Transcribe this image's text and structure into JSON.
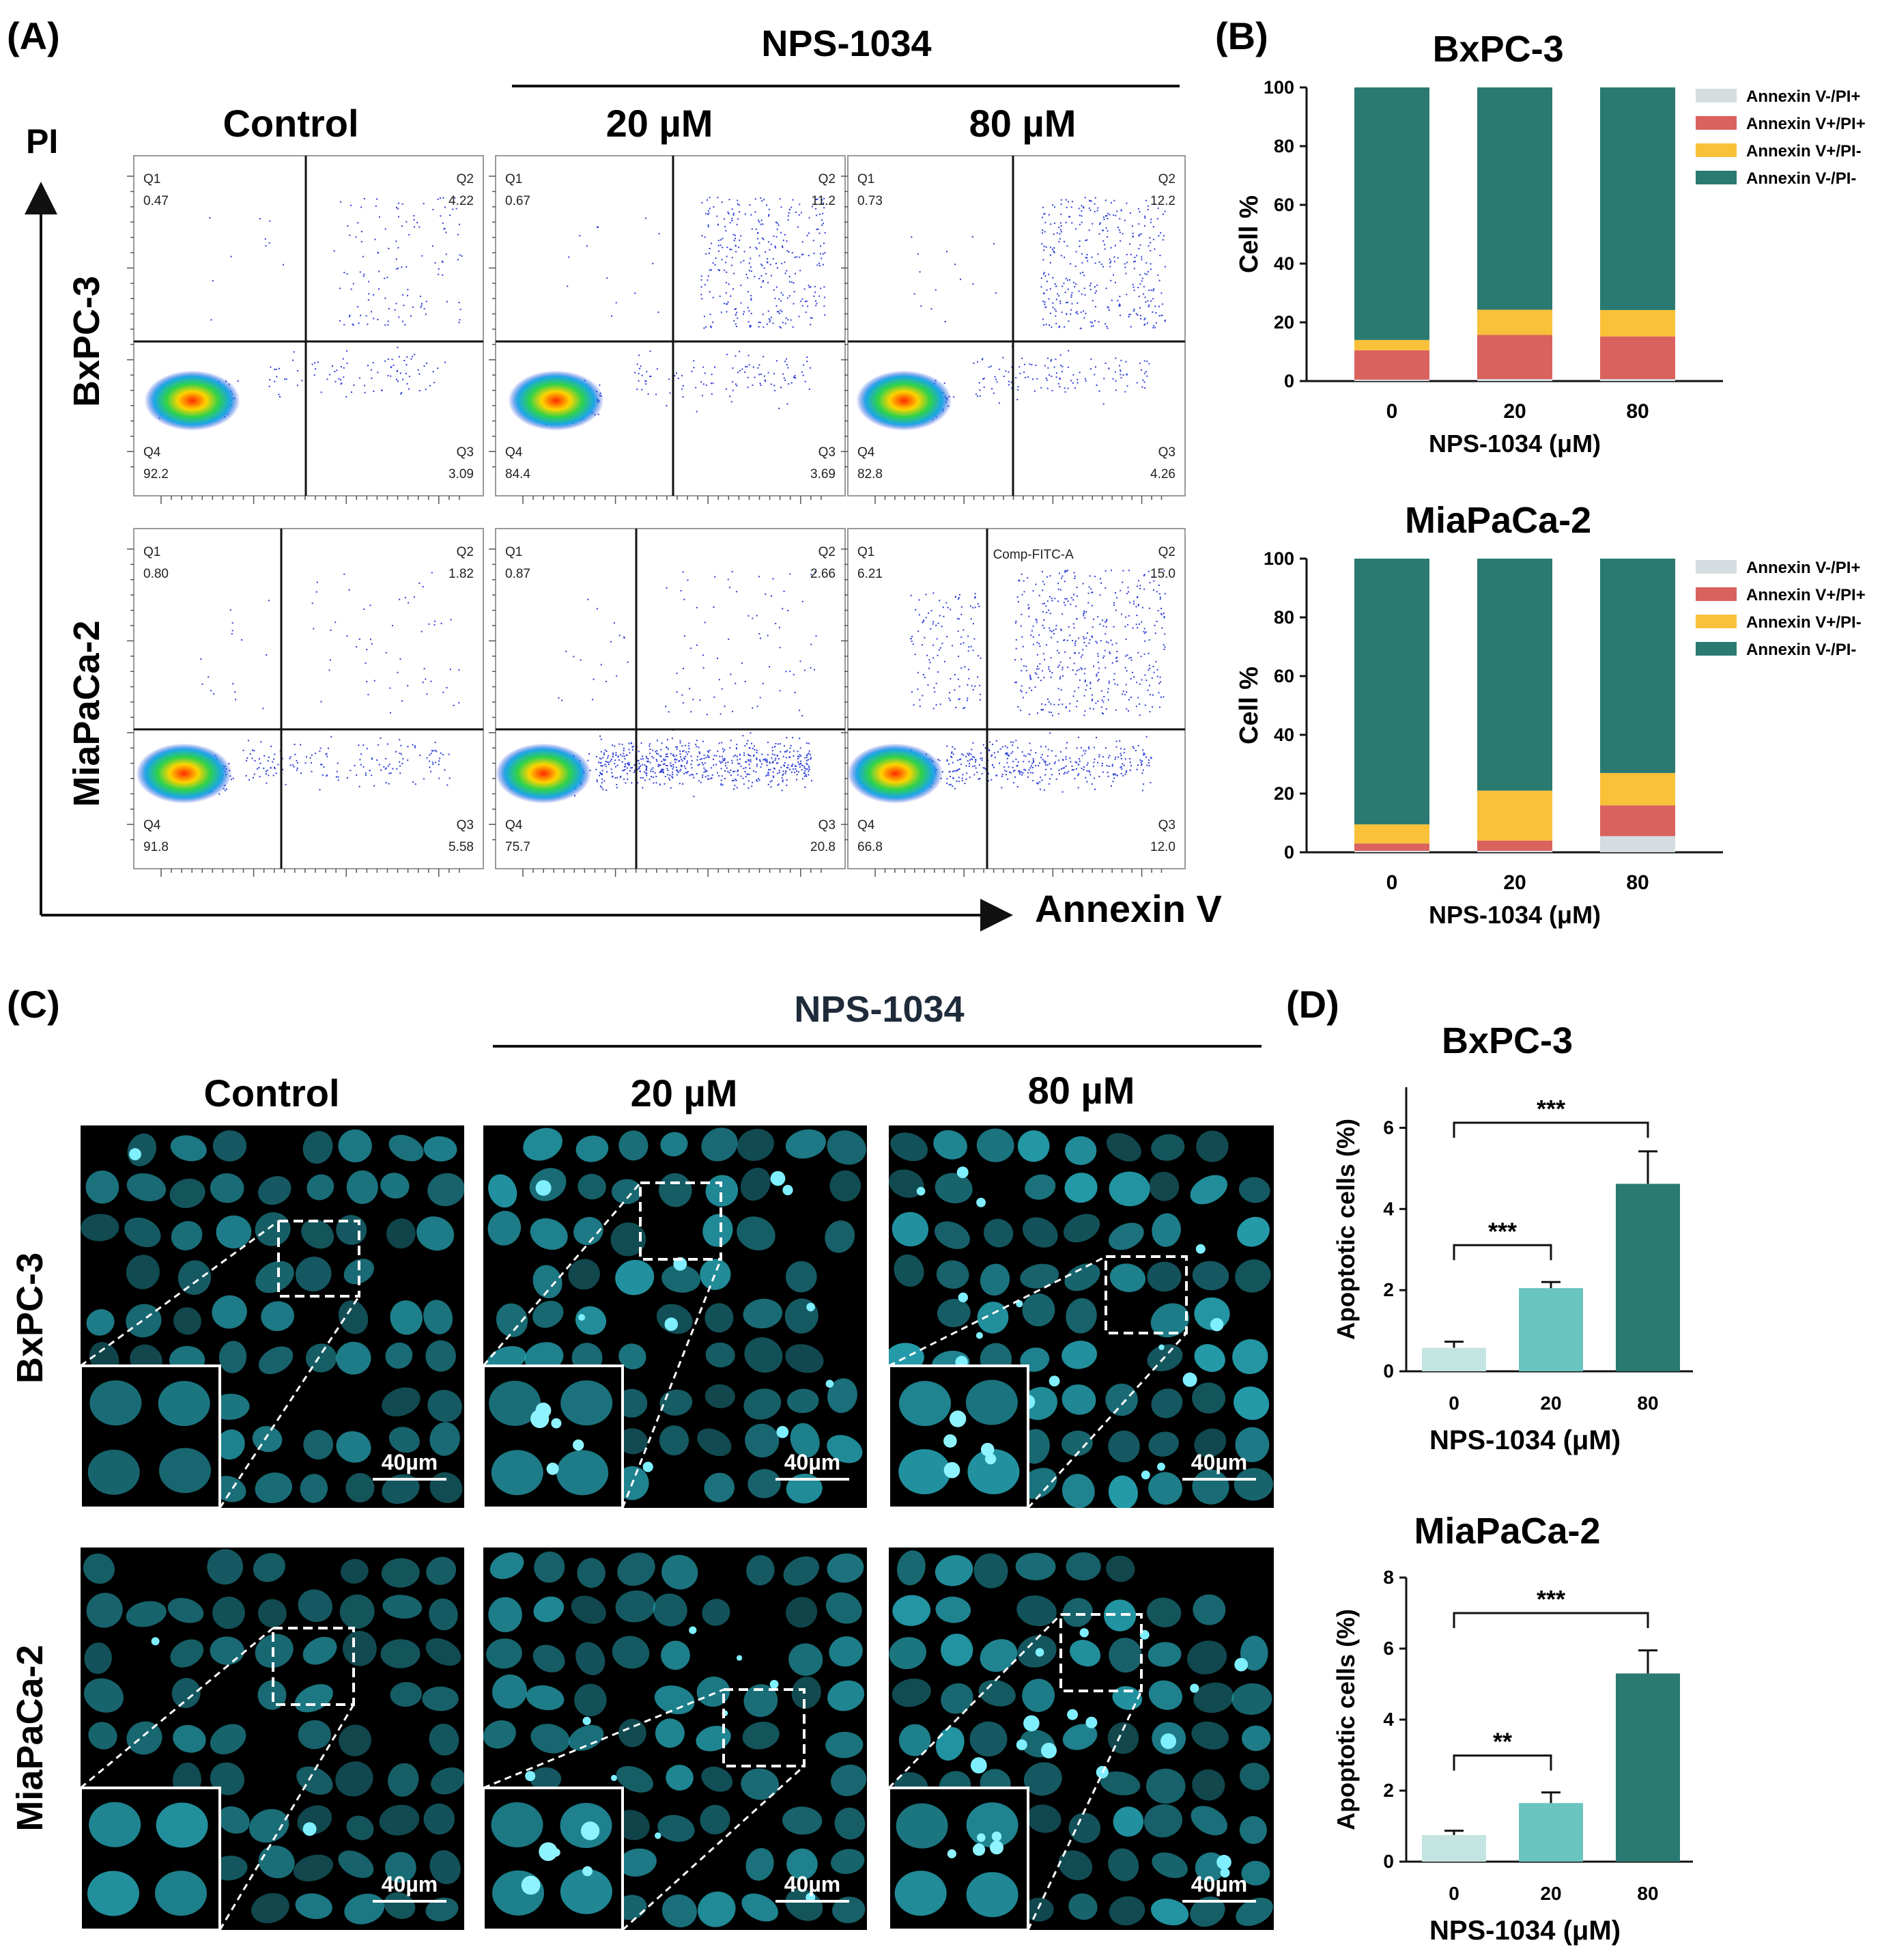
{
  "panelA": {
    "label": "(A)",
    "treatment_title": "NPS-1034",
    "columns": [
      "Control",
      "20 µM",
      "80 µM"
    ],
    "rows": [
      "BxPC-3",
      "MiaPaCa-2"
    ],
    "y_axis_label": "PI",
    "x_axis_label": "Annexin V",
    "quadrants": [
      [
        {
          "Q1": "0.47",
          "Q2": "4.22",
          "Q3": "3.09",
          "Q4": "92.2"
        },
        {
          "Q1": "0.67",
          "Q2": "11.2",
          "Q3": "3.69",
          "Q4": "84.4"
        },
        {
          "Q1": "0.73",
          "Q2": "12.2",
          "Q3": "4.26",
          "Q4": "82.8"
        }
      ],
      [
        {
          "Q1": "0.80",
          "Q2": "1.82",
          "Q3": "5.58",
          "Q4": "91.8"
        },
        {
          "Q1": "0.87",
          "Q2": "2.66",
          "Q3": "20.8",
          "Q4": "75.7"
        },
        {
          "Q1": "6.21",
          "Q2": "15.0",
          "Q3": "12.0",
          "Q4": "66.8",
          "extra": "Comp-FITC-A"
        }
      ]
    ]
  },
  "panelC": {
    "label": "(C)",
    "treatment_title": "NPS-1034",
    "columns": [
      "Control",
      "20 µM",
      "80 µM"
    ],
    "rows": [
      "BxPC-3",
      "MiaPaCa-2"
    ],
    "scale_bar": "40µm"
  },
  "panelB_label": "(B)",
  "panelD_label": "(D)",
  "colors": {
    "teal": "#2a7a72",
    "red": "#d9625e",
    "yellow": "#f9c139",
    "light_gray": "#d5dde0",
    "bar_light": "#c4e4e2",
    "bar_mid": "#6ac4c0",
    "bar_dark": "#2a7a72",
    "fluor": "#2ec4d6"
  },
  "chart_data": [
    {
      "type": "bar",
      "stacked": true,
      "title": "BxPC-3",
      "categories": [
        "0",
        "20",
        "80"
      ],
      "xlabel": "NPS-1034  (μM)",
      "ylabel": "Cell %",
      "ylim": [
        0,
        100
      ],
      "yticks": [
        "0",
        "20",
        "40",
        "60",
        "80",
        "100"
      ],
      "legend_position": "top-right",
      "series": [
        {
          "name": "Annexin V-/PI+",
          "values": [
            0.5,
            0.7,
            0.7
          ]
        },
        {
          "name": "Annexin V+/PI+",
          "values": [
            10,
            15,
            14.5
          ]
        },
        {
          "name": "Annexin V+/PI-",
          "values": [
            3.5,
            8.6,
            9
          ]
        },
        {
          "name": "Annexin V-/PI-",
          "values": [
            86,
            75.7,
            75.8
          ]
        }
      ]
    },
    {
      "type": "bar",
      "stacked": true,
      "title": "MiaPaCa-2",
      "categories": [
        "0",
        "20",
        "80"
      ],
      "xlabel": "NPS-1034  (μM)",
      "ylabel": "Cell %",
      "ylim": [
        0,
        100
      ],
      "yticks": [
        "0",
        "20",
        "40",
        "60",
        "80",
        "100"
      ],
      "legend_position": "top-right",
      "series": [
        {
          "name": "Annexin V-/PI+",
          "values": [
            0.5,
            0.5,
            5.5
          ]
        },
        {
          "name": "Annexin V+/PI+",
          "values": [
            2.5,
            3.5,
            10.5
          ]
        },
        {
          "name": "Annexin V+/PI-",
          "values": [
            6.5,
            17,
            11
          ]
        },
        {
          "name": "Annexin V-/PI-",
          "values": [
            90.5,
            79,
            73
          ]
        }
      ]
    },
    {
      "type": "bar",
      "title": "BxPC-3",
      "categories": [
        "0",
        "20",
        "80"
      ],
      "xlabel": "NPS-1034  (μM)",
      "ylabel": "Apoptotic cells (%)",
      "ylim": [
        0,
        7
      ],
      "yticks": [
        "0",
        "2",
        "4",
        "6"
      ],
      "values": [
        0.58,
        2.05,
        4.62
      ],
      "errors": [
        0.15,
        0.15,
        0.8
      ],
      "significance": [
        {
          "from": "0",
          "to": "20",
          "label": "***"
        },
        {
          "from": "0",
          "to": "80",
          "label": "***"
        }
      ]
    },
    {
      "type": "bar",
      "title": "MiaPaCa-2",
      "categories": [
        "0",
        "20",
        "80"
      ],
      "xlabel": "NPS-1034  (μM)",
      "ylabel": "Apoptotic cells (%)",
      "ylim": [
        0,
        8
      ],
      "yticks": [
        "0",
        "2",
        "4",
        "6",
        "8"
      ],
      "values": [
        0.75,
        1.65,
        5.3
      ],
      "errors": [
        0.12,
        0.3,
        0.65
      ],
      "significance": [
        {
          "from": "0",
          "to": "20",
          "label": "**"
        },
        {
          "from": "0",
          "to": "80",
          "label": "***"
        }
      ]
    }
  ]
}
